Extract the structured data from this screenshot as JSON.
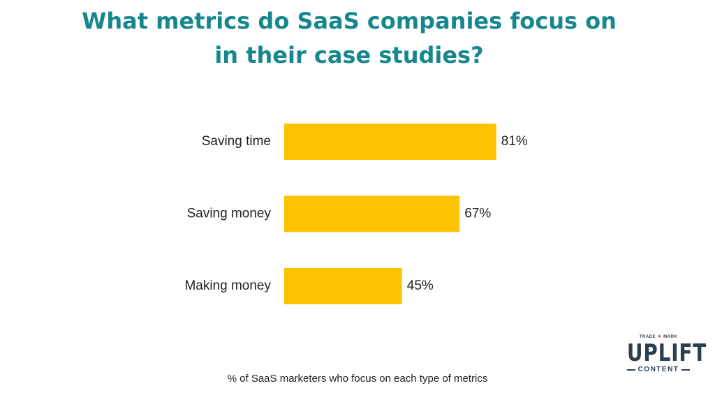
{
  "title": {
    "line1": "What metrics do SaaS companies focus on",
    "line2": "in their case studies?"
  },
  "chart_data": {
    "type": "bar",
    "orientation": "horizontal",
    "categories": [
      "Saving time",
      "Saving money",
      "Making money"
    ],
    "values": [
      81,
      67,
      45
    ],
    "value_labels": [
      "81%",
      "67%",
      "45%"
    ],
    "unit": "%",
    "xlim": [
      0,
      100
    ],
    "grid": false,
    "bar_color": "#fdc300",
    "caption": "% of SaaS marketers who focus on each type of metrics"
  },
  "logo": {
    "trademark_left": "TRADE",
    "trademark_right": "MARK",
    "word": "UPLIFT",
    "sub": "CONTENT"
  },
  "colors": {
    "title": "#17878f",
    "bar": "#fdc300",
    "text": "#222222",
    "logo": "#2b3f52",
    "logo_star": "#d9362a"
  }
}
